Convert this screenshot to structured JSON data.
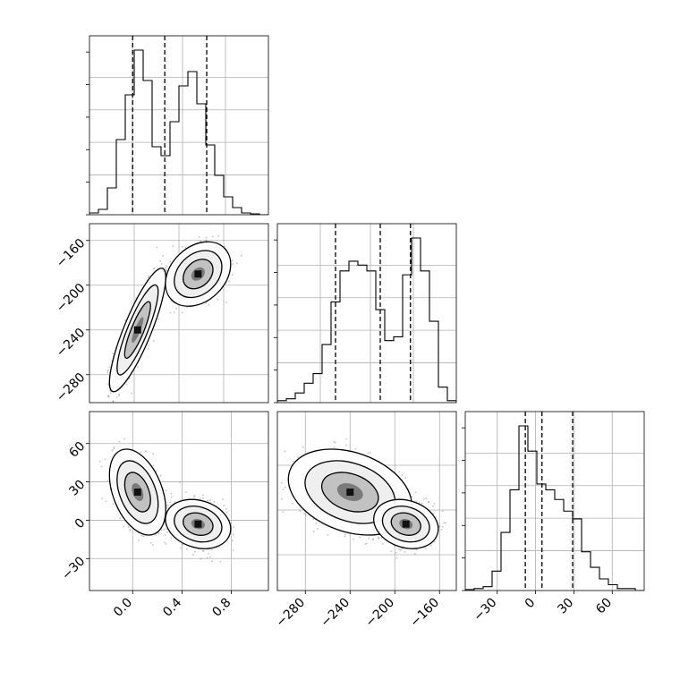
{
  "chart_data": {
    "type": "corner",
    "parameters": [
      "",
      "",
      ""
    ],
    "grid": true,
    "panels": [
      {
        "row": 0,
        "col": 0,
        "kind": "histogram",
        "xlim": [
          -0.35,
          1.1
        ],
        "counts": [
          1,
          3,
          15,
          42,
          67,
          92,
          75,
          38,
          33,
          52,
          72,
          80,
          62,
          39,
          22,
          10,
          4,
          1,
          0.5,
          0
        ],
        "quantiles": [
          0.0,
          0.26,
          0.6
        ],
        "xticks": [],
        "yticks": [],
        "show_labels": false
      },
      {
        "row": 1,
        "col": 0,
        "kind": "density2d",
        "xlim": [
          -0.35,
          1.1
        ],
        "ylim": [
          -305,
          -145
        ],
        "clusters": [
          {
            "cx": 0.04,
            "cy": -240,
            "sx": 0.095,
            "sy": 23,
            "rho": 0.85,
            "weight": 0.5
          },
          {
            "cx": 0.53,
            "cy": -190,
            "sx": 0.11,
            "sy": 12,
            "rho": 0.3,
            "weight": 0.5
          }
        ],
        "yticks": [
          -160,
          -200,
          -240,
          -280
        ],
        "ytick_labels": [
          "−160",
          "−200",
          "−240",
          "−280"
        ],
        "xticks": [],
        "show_labels": true
      },
      {
        "row": 1,
        "col": 1,
        "kind": "histogram",
        "xlim": [
          -305,
          -145
        ],
        "counts": [
          1,
          2,
          5,
          10,
          15,
          30,
          52,
          68,
          73,
          71,
          68,
          48,
          32,
          34,
          66,
          85,
          68,
          42,
          8,
          1
        ],
        "quantiles": [
          -253,
          -213,
          -186
        ],
        "xticks": [],
        "yticks": [],
        "show_labels": false
      },
      {
        "row": 2,
        "col": 0,
        "kind": "density2d",
        "xlim": [
          -0.35,
          1.1
        ],
        "ylim": [
          -55,
          85
        ],
        "clusters": [
          {
            "cx": 0.04,
            "cy": 22,
            "sx": 0.095,
            "sy": 14,
            "rho": -0.4,
            "weight": 0.5
          },
          {
            "cx": 0.53,
            "cy": -3,
            "sx": 0.11,
            "sy": 8,
            "rho": -0.2,
            "weight": 0.5
          }
        ],
        "xticks": [
          0.0,
          0.4,
          0.8
        ],
        "xtick_labels": [
          "0.0",
          "0.4",
          "0.8"
        ],
        "yticks": [
          60,
          30,
          0,
          -30
        ],
        "ytick_labels": [
          "60",
          "30",
          "0",
          "−30"
        ],
        "show_labels": true
      },
      {
        "row": 2,
        "col": 1,
        "kind": "density2d",
        "xlim": [
          -305,
          -145
        ],
        "ylim": [
          -55,
          85
        ],
        "clusters": [
          {
            "cx": -240,
            "cy": 22,
            "sx": 23,
            "sy": 14,
            "rho": -0.3,
            "weight": 0.5
          },
          {
            "cx": -190,
            "cy": -3,
            "sx": 12,
            "sy": 8,
            "rho": -0.2,
            "weight": 0.5
          }
        ],
        "xticks": [
          -280,
          -240,
          -200,
          -160
        ],
        "xtick_labels": [
          "−280",
          "−240",
          "−200",
          "−160"
        ],
        "yticks": [],
        "show_labels": true
      },
      {
        "row": 2,
        "col": 2,
        "kind": "histogram",
        "xlim": [
          -55,
          85
        ],
        "counts": [
          0.5,
          1,
          2,
          10,
          30,
          52,
          85,
          72,
          55,
          52,
          47,
          41,
          37,
          20,
          12,
          6,
          3,
          1,
          1,
          0
        ],
        "quantiles": [
          -8,
          5,
          29
        ],
        "xticks": [
          -30,
          0,
          30,
          60
        ],
        "xtick_labels": [
          "−30",
          "0",
          "30",
          "60"
        ],
        "yticks": [],
        "show_labels": true
      }
    ]
  }
}
